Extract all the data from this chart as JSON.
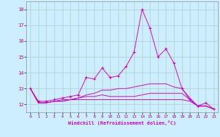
{
  "title": "",
  "xlabel": "Windchill (Refroidissement éolien,°C)",
  "background_color": "#cceeff",
  "line_color": "#cc00cc",
  "grid_color": "#aacccc",
  "xlim": [
    -0.5,
    23.5
  ],
  "ylim": [
    11.5,
    18.5
  ],
  "yticks": [
    12,
    13,
    14,
    15,
    16,
    17,
    18
  ],
  "xticks": [
    0,
    1,
    2,
    3,
    4,
    5,
    6,
    7,
    8,
    9,
    10,
    11,
    12,
    13,
    14,
    15,
    16,
    17,
    18,
    19,
    20,
    21,
    22,
    23
  ],
  "series": [
    {
      "x": [
        0,
        1,
        2,
        3,
        4,
        5,
        6,
        7,
        8,
        9,
        10,
        11,
        12,
        13,
        14,
        15,
        16,
        17,
        18,
        19,
        20,
        21,
        22,
        23
      ],
      "y": [
        13.0,
        12.2,
        12.2,
        12.3,
        12.4,
        12.5,
        12.6,
        13.7,
        13.6,
        14.3,
        13.7,
        13.8,
        14.4,
        15.3,
        18.0,
        16.8,
        15.0,
        15.5,
        14.6,
        13.0,
        12.3,
        11.9,
        12.1,
        11.7
      ],
      "marker": "+"
    },
    {
      "x": [
        0,
        1,
        2,
        3,
        4,
        5,
        6,
        7,
        8,
        9,
        10,
        11,
        12,
        13,
        14,
        15,
        16,
        17,
        18,
        19,
        20,
        21,
        22,
        23
      ],
      "y": [
        13.0,
        12.1,
        12.1,
        12.2,
        12.2,
        12.3,
        12.3,
        12.3,
        12.3,
        12.3,
        12.3,
        12.3,
        12.3,
        12.3,
        12.3,
        12.3,
        12.3,
        12.3,
        12.3,
        12.3,
        12.2,
        11.9,
        11.9,
        11.7
      ],
      "marker": null
    },
    {
      "x": [
        0,
        1,
        2,
        3,
        4,
        5,
        6,
        7,
        8,
        9,
        10,
        11,
        12,
        13,
        14,
        15,
        16,
        17,
        18,
        19,
        20,
        21,
        22,
        23
      ],
      "y": [
        13.0,
        12.1,
        12.1,
        12.2,
        12.2,
        12.3,
        12.4,
        12.5,
        12.5,
        12.6,
        12.5,
        12.5,
        12.5,
        12.5,
        12.6,
        12.7,
        12.7,
        12.7,
        12.7,
        12.7,
        12.3,
        11.9,
        11.9,
        11.7
      ],
      "marker": null
    },
    {
      "x": [
        0,
        1,
        2,
        3,
        4,
        5,
        6,
        7,
        8,
        9,
        10,
        11,
        12,
        13,
        14,
        15,
        16,
        17,
        18,
        19,
        20,
        21,
        22,
        23
      ],
      "y": [
        13.0,
        12.1,
        12.1,
        12.2,
        12.3,
        12.3,
        12.4,
        12.6,
        12.7,
        12.9,
        12.9,
        13.0,
        13.0,
        13.1,
        13.2,
        13.3,
        13.3,
        13.3,
        13.1,
        13.0,
        12.4,
        11.9,
        11.9,
        11.7
      ],
      "marker": null
    }
  ]
}
